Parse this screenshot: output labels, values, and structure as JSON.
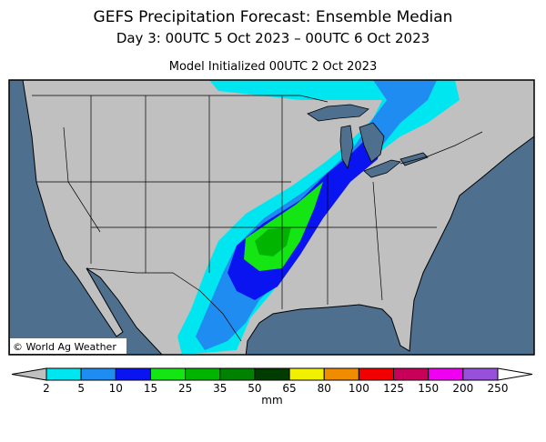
{
  "header": {
    "title": "GEFS Precipitation Forecast: Ensemble Median",
    "subtitle": "Day 3: 00UTC 5 Oct 2023 – 00UTC 6 Oct 2023",
    "init": "Model Initialized 00UTC 2 Oct 2023"
  },
  "map": {
    "credit": "© World Ag Weather"
  },
  "colorbar": {
    "levels": [
      2,
      5,
      10,
      15,
      25,
      35,
      50,
      65,
      80,
      100,
      125,
      150,
      200,
      250
    ],
    "colors": [
      "#00e6f0",
      "#1e8cf0",
      "#0a14f0",
      "#14e614",
      "#00b400",
      "#008200",
      "#003c00",
      "#f0f000",
      "#f08c00",
      "#f00000",
      "#c8005a",
      "#f000f0",
      "#9650dc"
    ],
    "under_color": "#c0c0c0",
    "over_color": "#ffffff",
    "unit": "mm"
  }
}
